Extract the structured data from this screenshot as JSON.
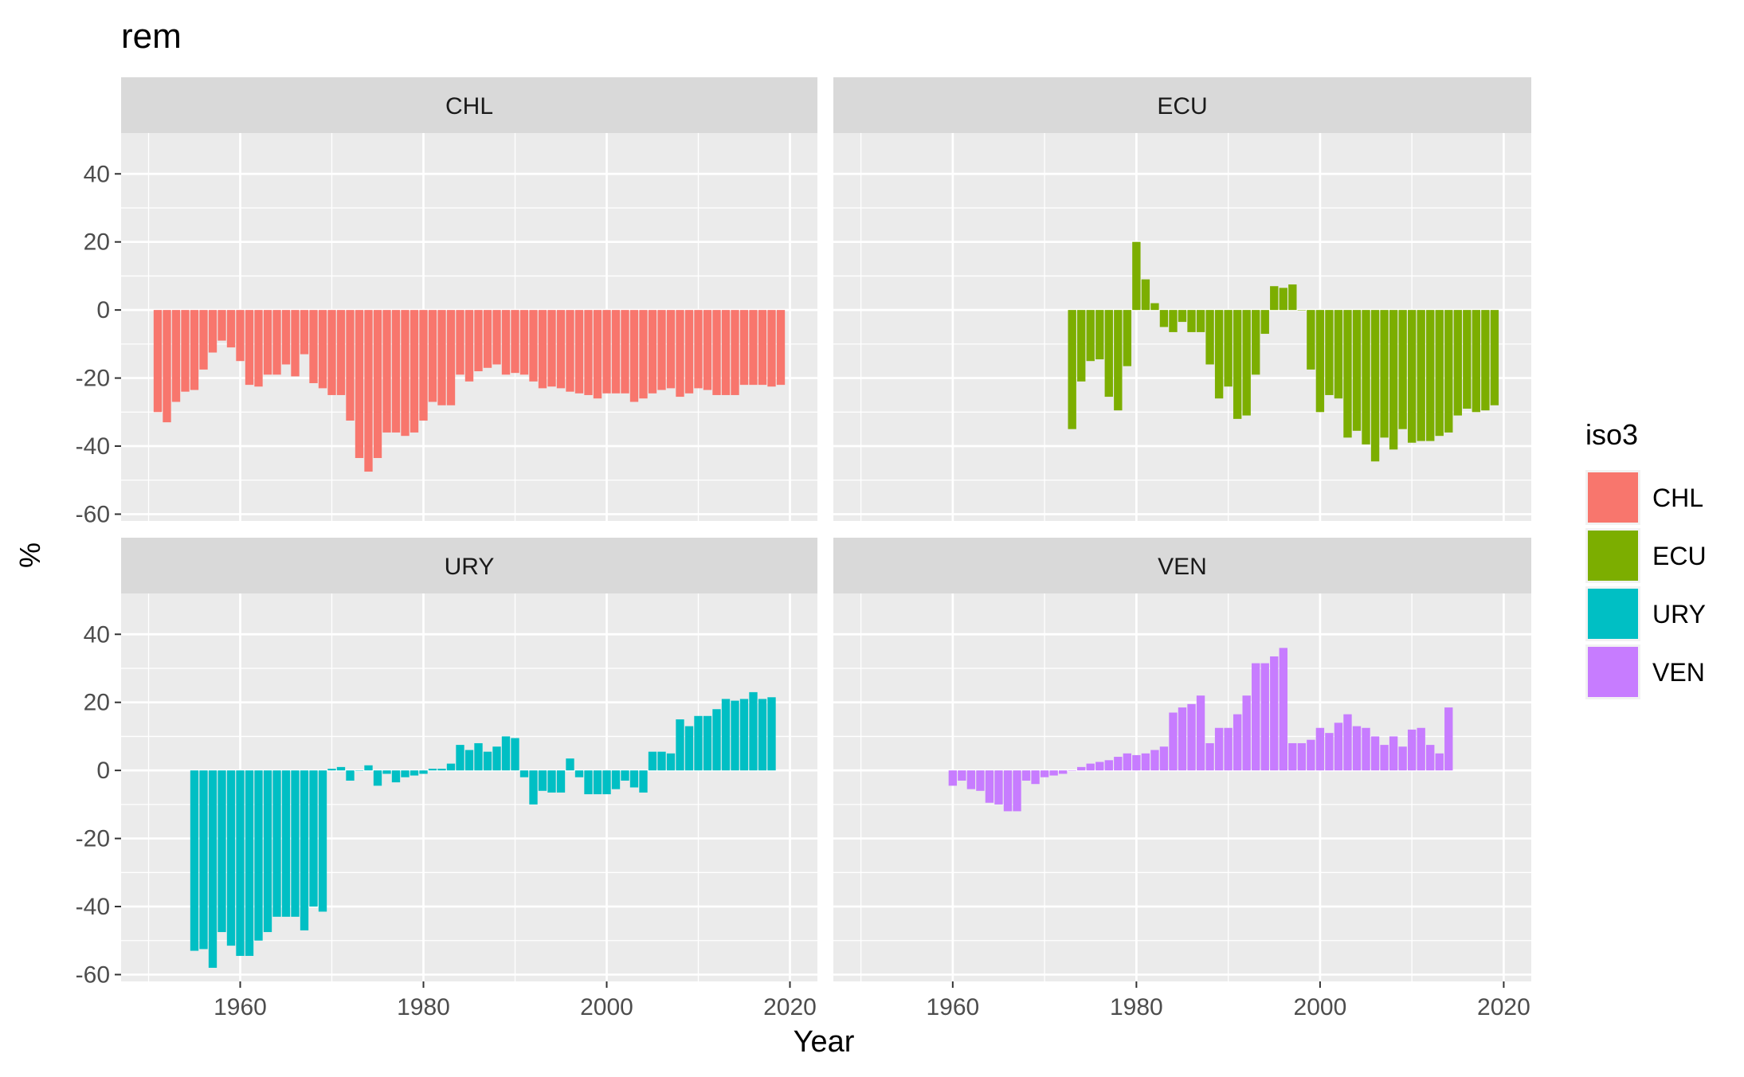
{
  "chart_data": {
    "type": "bar",
    "title": "rem",
    "xlabel": "Year",
    "ylabel": "%",
    "facet_layout": "2x2 grid, shared axes",
    "xlim": [
      1947,
      2023
    ],
    "ylim": [
      -62,
      52
    ],
    "x_ticks": [
      1960,
      1980,
      2000,
      2020
    ],
    "y_ticks": [
      -60,
      -40,
      -20,
      0,
      20,
      40
    ],
    "grid": true,
    "legend": {
      "title": "iso3",
      "position": "right",
      "entries": [
        {
          "label": "CHL",
          "color": "#F8766D"
        },
        {
          "label": "ECU",
          "color": "#7CAE00"
        },
        {
          "label": "URY",
          "color": "#00BFC4"
        },
        {
          "label": "VEN",
          "color": "#C77CFF"
        }
      ]
    },
    "panels": [
      {
        "name": "CHL",
        "color": "#F8766D",
        "start_year": 1951,
        "values": [
          -30,
          -33,
          -27,
          -24,
          -23.5,
          -17.5,
          -12.5,
          -9,
          -11,
          -15,
          -22,
          -22.5,
          -19,
          -19,
          -16,
          -19.5,
          -13,
          -21.5,
          -23,
          -25,
          -25,
          -32.5,
          -43.5,
          -47.5,
          -43.5,
          -36,
          -36,
          -37,
          -36,
          -32.5,
          -27,
          -28,
          -28,
          -19,
          -21,
          -18,
          -17,
          -16,
          -19,
          -18.5,
          -19,
          -21,
          -23,
          -22.5,
          -23,
          -24,
          -24.5,
          -25,
          -26,
          -24.5,
          -24.5,
          -24.5,
          -27,
          -26,
          -24.5,
          -23.5,
          -23,
          -25.5,
          -24.5,
          -23,
          -23.5,
          -25,
          -25,
          -25,
          -22,
          -22,
          -22,
          -22.5,
          -22
        ]
      },
      {
        "name": "ECU",
        "color": "#7CAE00",
        "start_year": 1973,
        "values": [
          -35,
          -21,
          -15,
          -14.5,
          -25.5,
          -29.5,
          -16.5,
          20,
          9,
          2,
          -5,
          -6.5,
          -3.5,
          -6.5,
          -6.5,
          -16,
          -26,
          -22.5,
          -32,
          -31,
          -19,
          -7,
          7,
          6.5,
          7.5,
          0,
          -17.5,
          -30,
          -25,
          -26,
          -37.5,
          -35.5,
          -39.5,
          -44.5,
          -37.5,
          -41,
          -35,
          -39,
          -38.5,
          -38.5,
          -37,
          -36,
          -31,
          -29,
          -30,
          -29.5,
          -28
        ]
      },
      {
        "name": "URY",
        "color": "#00BFC4",
        "start_year": 1955,
        "values": [
          -53,
          -52.5,
          -58,
          -47.5,
          -51.5,
          -54.5,
          -54.5,
          -50,
          -47.5,
          -43,
          -43,
          -43,
          -47,
          -40,
          -41.5,
          0.5,
          1,
          -3,
          0,
          1.5,
          -4.5,
          -1,
          -3.5,
          -2,
          -1.5,
          -1,
          0.5,
          0.5,
          2,
          7.5,
          6,
          8,
          5.5,
          7,
          10,
          9.5,
          -2,
          -10,
          -6,
          -6.5,
          -6.5,
          3.5,
          -2,
          -7,
          -7,
          -7,
          -5.5,
          -3,
          -5,
          -6.5,
          5.5,
          5.5,
          5,
          15,
          13,
          16,
          16,
          18,
          21,
          20.5,
          21,
          23,
          21,
          21.5
        ]
      },
      {
        "name": "VEN",
        "color": "#C77CFF",
        "start_year": 1960,
        "values": [
          -4.5,
          -3,
          -5.5,
          -6,
          -9.5,
          -10,
          -12,
          -12,
          -3,
          -4,
          -2,
          -1.5,
          -1,
          0,
          1,
          2,
          2.5,
          3,
          4,
          5,
          4.5,
          5,
          6,
          7,
          17,
          18.5,
          19.5,
          22,
          8,
          12.5,
          12.5,
          16.5,
          22,
          31.5,
          31.5,
          33.5,
          36,
          8,
          8,
          9,
          12.5,
          11,
          14,
          16.5,
          13,
          12.5,
          10,
          7.5,
          10,
          7,
          12,
          12.5,
          7.5,
          5,
          18.5
        ]
      }
    ]
  }
}
